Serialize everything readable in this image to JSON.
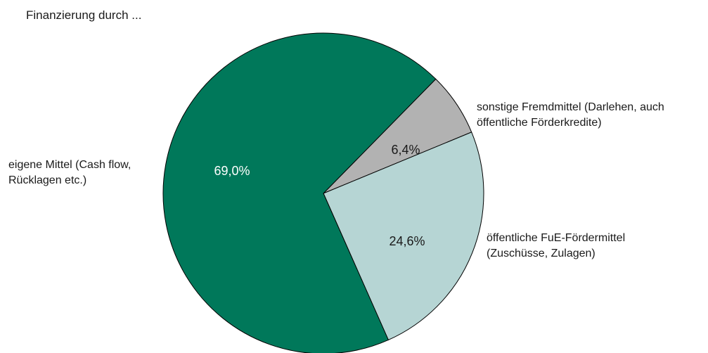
{
  "chart_data": {
    "type": "pie",
    "title": "Finanzierung durch ...",
    "slices": [
      {
        "label_lines": [
          "sonstige Fremdmittel (Darlehen, auch",
          "öffentliche Förderkredite)"
        ],
        "value": 6.4,
        "value_label": "6,4%",
        "color": "#b2b2b2",
        "label_color": "#1a1a1a"
      },
      {
        "label_lines": [
          "öffentliche FuE-Fördermittel",
          "(Zuschüsse, Zulagen)"
        ],
        "value": 24.6,
        "value_label": "24,6%",
        "color": "#b6d5d4",
        "label_color": "#1a1a1a"
      },
      {
        "label_lines": [
          "eigene Mittel (Cash flow,",
          "Rücklagen etc.)"
        ],
        "value": 69.0,
        "value_label": "69,0%",
        "color": "#00785a",
        "label_color": "#ffffff"
      }
    ],
    "start_angle_deg": 44.5,
    "direction": "clockwise",
    "legend": "none"
  }
}
